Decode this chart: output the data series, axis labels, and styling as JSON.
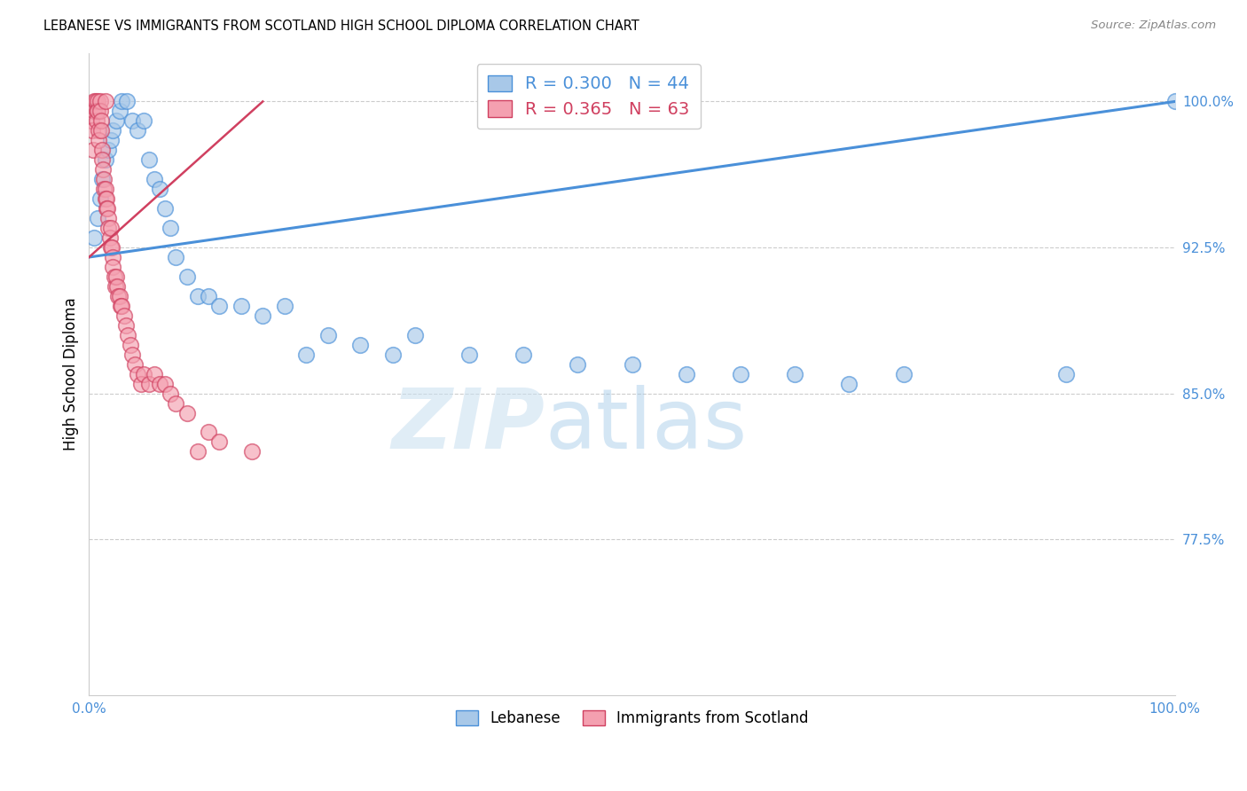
{
  "title": "LEBANESE VS IMMIGRANTS FROM SCOTLAND HIGH SCHOOL DIPLOMA CORRELATION CHART",
  "source": "Source: ZipAtlas.com",
  "ylabel": "High School Diploma",
  "legend_label1": "Lebanese",
  "legend_label2": "Immigrants from Scotland",
  "r1": 0.3,
  "n1": 44,
  "r2": 0.365,
  "n2": 63,
  "color_blue": "#a8c8e8",
  "color_pink": "#f4a0b0",
  "line_color_blue": "#4a90d9",
  "line_color_red": "#d04060",
  "watermark_zip": "ZIP",
  "watermark_atlas": "atlas",
  "xmin": 0.0,
  "xmax": 1.0,
  "ymin": 0.695,
  "ymax": 1.025,
  "yticks": [
    0.775,
    0.85,
    0.925,
    1.0
  ],
  "ytick_labels": [
    "77.5%",
    "85.0%",
    "92.5%",
    "100.0%"
  ],
  "xtick_positions": [
    0.0,
    0.1,
    0.2,
    0.3,
    0.4,
    0.5,
    0.6,
    0.7,
    0.8,
    0.9,
    1.0
  ],
  "xtick_labels": [
    "0.0%",
    "",
    "",
    "",
    "",
    "",
    "",
    "",
    "",
    "",
    "100.0%"
  ],
  "blue_x": [
    0.005,
    0.008,
    0.01,
    0.012,
    0.015,
    0.018,
    0.02,
    0.022,
    0.025,
    0.028,
    0.03,
    0.035,
    0.04,
    0.045,
    0.05,
    0.055,
    0.06,
    0.065,
    0.07,
    0.075,
    0.08,
    0.09,
    0.1,
    0.11,
    0.12,
    0.14,
    0.16,
    0.18,
    0.2,
    0.22,
    0.25,
    0.28,
    0.3,
    0.35,
    0.4,
    0.45,
    0.5,
    0.55,
    0.6,
    0.65,
    0.7,
    0.75,
    0.9,
    1.0
  ],
  "blue_y": [
    0.93,
    0.94,
    0.95,
    0.96,
    0.97,
    0.975,
    0.98,
    0.985,
    0.99,
    0.995,
    1.0,
    1.0,
    0.99,
    0.985,
    0.99,
    0.97,
    0.96,
    0.955,
    0.945,
    0.935,
    0.92,
    0.91,
    0.9,
    0.9,
    0.895,
    0.895,
    0.89,
    0.895,
    0.87,
    0.88,
    0.875,
    0.87,
    0.88,
    0.87,
    0.87,
    0.865,
    0.865,
    0.86,
    0.86,
    0.86,
    0.855,
    0.86,
    0.86,
    1.0
  ],
  "pink_x": [
    0.002,
    0.003,
    0.004,
    0.005,
    0.005,
    0.006,
    0.007,
    0.007,
    0.008,
    0.008,
    0.009,
    0.009,
    0.01,
    0.01,
    0.011,
    0.011,
    0.012,
    0.012,
    0.013,
    0.014,
    0.014,
    0.015,
    0.015,
    0.016,
    0.016,
    0.017,
    0.018,
    0.018,
    0.019,
    0.02,
    0.02,
    0.021,
    0.022,
    0.022,
    0.023,
    0.024,
    0.025,
    0.026,
    0.027,
    0.028,
    0.029,
    0.03,
    0.032,
    0.034,
    0.036,
    0.038,
    0.04,
    0.042,
    0.045,
    0.048,
    0.05,
    0.055,
    0.06,
    0.065,
    0.07,
    0.075,
    0.08,
    0.09,
    0.1,
    0.11,
    0.12,
    0.15,
    0.015
  ],
  "pink_y": [
    0.99,
    0.985,
    0.975,
    1.0,
    0.995,
    1.0,
    0.995,
    0.99,
    1.0,
    0.995,
    0.985,
    0.98,
    1.0,
    0.995,
    0.99,
    0.985,
    0.975,
    0.97,
    0.965,
    0.96,
    0.955,
    0.955,
    0.95,
    0.95,
    0.945,
    0.945,
    0.94,
    0.935,
    0.93,
    0.935,
    0.925,
    0.925,
    0.92,
    0.915,
    0.91,
    0.905,
    0.91,
    0.905,
    0.9,
    0.9,
    0.895,
    0.895,
    0.89,
    0.885,
    0.88,
    0.875,
    0.87,
    0.865,
    0.86,
    0.855,
    0.86,
    0.855,
    0.86,
    0.855,
    0.855,
    0.85,
    0.845,
    0.84,
    0.82,
    0.83,
    0.825,
    0.82,
    1.0
  ],
  "blue_trend_x0": 0.0,
  "blue_trend_x1": 1.0,
  "blue_trend_y0": 0.92,
  "blue_trend_y1": 1.0,
  "pink_trend_x0": 0.0,
  "pink_trend_x1": 0.16,
  "pink_trend_y0": 0.92,
  "pink_trend_y1": 1.0
}
